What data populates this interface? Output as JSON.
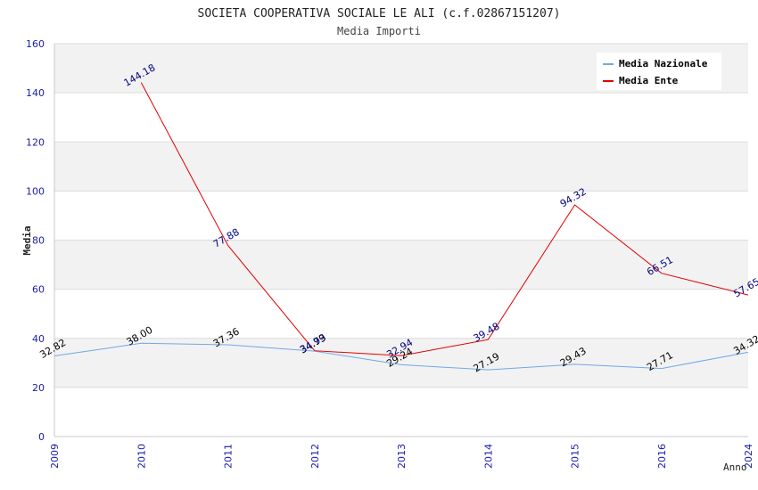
{
  "chart_data": {
    "type": "line",
    "title": "SOCIETA COOPERATIVA SOCIALE LE ALI (c.f.02867151207)",
    "subtitle": "Media Importi",
    "xlabel": "Anno",
    "ylabel": "Media",
    "categories": [
      "2009",
      "2010",
      "2011",
      "2012",
      "2013",
      "2014",
      "2015",
      "2016",
      "2024"
    ],
    "ylim": [
      0,
      160
    ],
    "yticks": [
      "0",
      "20",
      "40",
      "60",
      "80",
      "100",
      "120",
      "140",
      "160"
    ],
    "grid": true,
    "legend_position": "top-right",
    "series": [
      {
        "name": "Media Nazionale",
        "color": "#6fa8e8",
        "label_color": "#000000",
        "values": [
          32.82,
          38.0,
          37.36,
          34.79,
          29.24,
          27.19,
          29.43,
          27.71,
          34.32
        ],
        "labels": [
          "32.82",
          "38.00",
          "37.36",
          "34.79",
          "29.24",
          "27.19",
          "29.43",
          "27.71",
          "34.32"
        ]
      },
      {
        "name": "Media Ente",
        "color": "#e00000",
        "label_color": "#000080",
        "values": [
          null,
          144.18,
          77.88,
          34.93,
          32.94,
          39.48,
          94.32,
          66.51,
          57.65
        ],
        "labels": [
          null,
          "144.18",
          "77.88",
          "34.93",
          "32.94",
          "39.48",
          "94.32",
          "66.51",
          "57.65"
        ]
      }
    ]
  }
}
